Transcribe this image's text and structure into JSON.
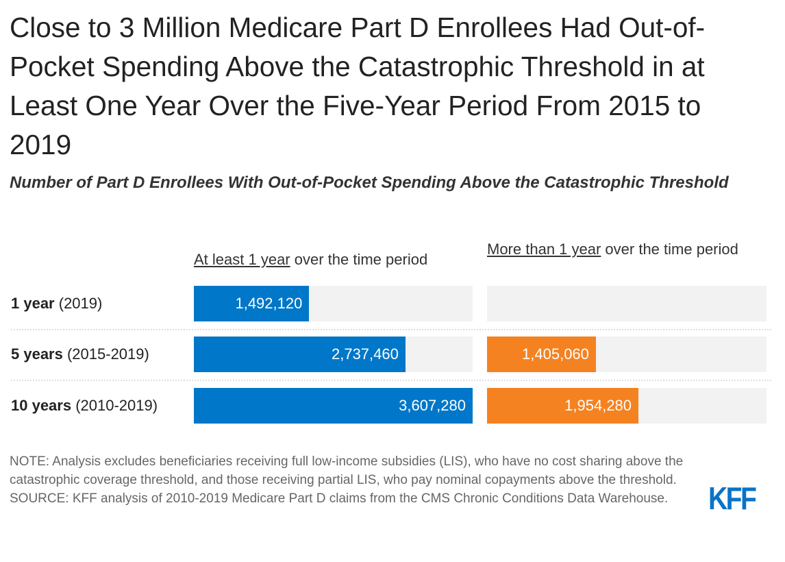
{
  "title": "Close to 3 Million Medicare Part D Enrollees Had Out-of-Pocket Spending Above the Catastrophic Threshold in at Least One Year Over the Five-Year Period From 2015 to 2019",
  "subtitle": "Number of Part D Enrollees With Out-of-Pocket Spending Above the Catastrophic Threshold",
  "chart_data": {
    "type": "bar",
    "orientation": "horizontal",
    "categories": [
      {
        "bold": "1 year",
        "rest": " (2019)"
      },
      {
        "bold": "5 years",
        "rest": " (2015-2019)"
      },
      {
        "bold": "10 years",
        "rest": " (2010-2019)"
      }
    ],
    "series": [
      {
        "name_underlined": "At least 1 year",
        "name_rest": " over the time period",
        "color": "#0077c8",
        "values": [
          1492120,
          2737460,
          3607280
        ],
        "labels": [
          "1,492,120",
          "2,737,460",
          "3,607,280"
        ]
      },
      {
        "name_underlined": "More than 1 year",
        "name_rest": " over the time period",
        "color": "#f58220",
        "values": [
          null,
          1405060,
          1954280
        ],
        "labels": [
          "",
          "1,405,060",
          "1,954,280"
        ]
      }
    ],
    "xlim": [
      0,
      3607280
    ],
    "grid": false,
    "data_labels": "inside-end"
  },
  "note": "NOTE: Analysis excludes beneficiaries receiving full low-income subsidies (LIS), who have no cost sharing above the catastrophic coverage threshold, and those receiving partial LIS, who pay nominal copayments above the threshold.",
  "source": "SOURCE: KFF analysis of 2010-2019 Medicare Part D claims from the CMS Chronic Conditions Data Warehouse.",
  "logo": "KFF",
  "colors": {
    "track": "#f2f2f2",
    "logo": "#0a73c7"
  }
}
